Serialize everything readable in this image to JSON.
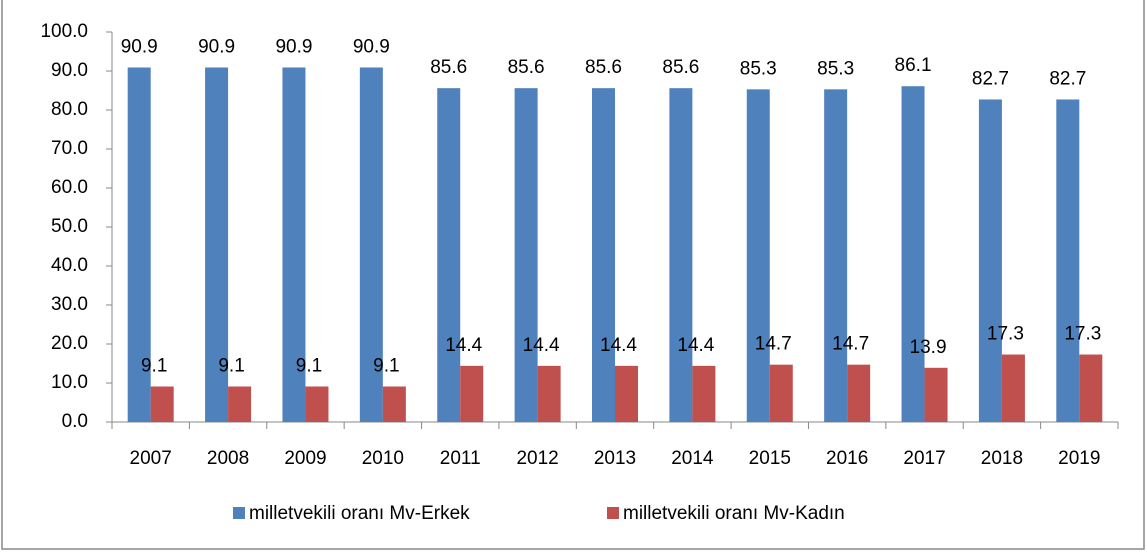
{
  "chart_data": {
    "type": "bar",
    "categories": [
      "2007",
      "2008",
      "2009",
      "2010",
      "2011",
      "2012",
      "2013",
      "2014",
      "2015",
      "2016",
      "2017",
      "2018",
      "2019"
    ],
    "series": [
      {
        "name": "milletvekili oranı  Mv-Erkek",
        "color": "#4f81bd",
        "values": [
          90.9,
          90.9,
          90.9,
          90.9,
          85.6,
          85.6,
          85.6,
          85.6,
          85.3,
          85.3,
          86.1,
          82.7,
          82.7
        ]
      },
      {
        "name": "milletvekili oranı  Mv-Kadın",
        "color": "#c0504d",
        "values": [
          9.1,
          9.1,
          9.1,
          9.1,
          14.4,
          14.4,
          14.4,
          14.4,
          14.7,
          14.7,
          13.9,
          17.3,
          17.3
        ]
      }
    ],
    "ylim": [
      0,
      100
    ],
    "yticks": [
      {
        "value": 0,
        "label": "0.0"
      },
      {
        "value": 10,
        "label": "10.0"
      },
      {
        "value": 20,
        "label": "20.0"
      },
      {
        "value": 30,
        "label": "30.0"
      },
      {
        "value": 40,
        "label": "40.0"
      },
      {
        "value": 50,
        "label": "50.0"
      },
      {
        "value": 60,
        "label": "60.0"
      },
      {
        "value": 70,
        "label": "70.0"
      },
      {
        "value": 80,
        "label": "80.0"
      },
      {
        "value": 90,
        "label": "90.0"
      },
      {
        "value": 100,
        "label": "100.0"
      }
    ],
    "grid": false,
    "legend": "bottom"
  }
}
